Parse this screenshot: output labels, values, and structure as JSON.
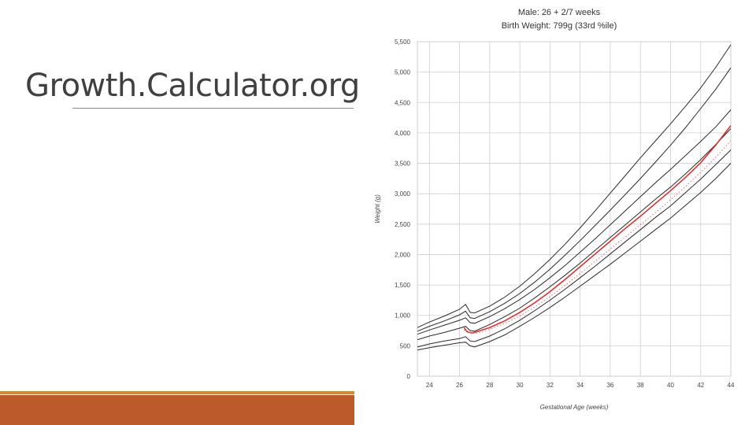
{
  "slide": {
    "title": "Growth.Calculator.org"
  },
  "chart_data": {
    "type": "line",
    "title_line1": "Male: 26 + 2/7 weeks",
    "title_line2": "Birth Weight: 799g (33rd %ile)",
    "xlabel": "Gestational Age (weeks)",
    "ylabel": "Weight (g)",
    "xlim": [
      23.2,
      44
    ],
    "ylim": [
      0,
      5500
    ],
    "xticks": [
      24,
      26,
      28,
      30,
      32,
      34,
      36,
      38,
      40,
      42,
      44
    ],
    "xtick_labels": [
      "24",
      "26",
      "28",
      "30",
      "32",
      "34",
      "36",
      "38",
      "40",
      "42",
      "44"
    ],
    "yticks": [
      0,
      500,
      1000,
      1500,
      2000,
      2500,
      3000,
      3500,
      4000,
      4500,
      5000,
      5500
    ],
    "ytick_labels": [
      "0",
      "500",
      "1,000",
      "1,500",
      "2,000",
      "2,500",
      "3,000",
      "3,500",
      "4,000",
      "4,500",
      "5,000",
      "5,500"
    ],
    "grid": true,
    "colors": {
      "percentile": "#2a2a2a",
      "patient": "#e03030",
      "patient_dotted": "#e06060",
      "grid": "#cfcfcf"
    },
    "series": [
      {
        "style": "black",
        "x": [
          23.2,
          24,
          25,
          26,
          26.4,
          26.7,
          27,
          28,
          29,
          30,
          31,
          32,
          33,
          34,
          35,
          36,
          37,
          38,
          39,
          40,
          41,
          42,
          43,
          44
        ],
        "y": [
          430,
          470,
          510,
          550,
          560,
          500,
          480,
          570,
          680,
          820,
          970,
          1130,
          1300,
          1480,
          1660,
          1840,
          2030,
          2220,
          2410,
          2600,
          2810,
          3020,
          3250,
          3500
        ]
      },
      {
        "style": "black",
        "x": [
          23.2,
          24,
          25,
          26,
          26.4,
          26.7,
          27,
          28,
          29,
          30,
          31,
          32,
          33,
          34,
          35,
          36,
          37,
          38,
          39,
          40,
          41,
          42,
          43,
          44
        ],
        "y": [
          480,
          530,
          580,
          620,
          650,
          580,
          570,
          660,
          780,
          920,
          1080,
          1250,
          1430,
          1620,
          1810,
          2010,
          2210,
          2410,
          2610,
          2800,
          3020,
          3240,
          3480,
          3720
        ]
      },
      {
        "style": "black",
        "x": [
          23.2,
          24,
          25,
          26,
          26.4,
          26.7,
          27,
          28,
          29,
          30,
          31,
          32,
          33,
          34,
          35,
          36,
          37,
          38,
          39,
          40,
          41,
          42,
          43,
          44
        ],
        "y": [
          600,
          660,
          720,
          790,
          820,
          750,
          740,
          850,
          980,
          1120,
          1290,
          1470,
          1660,
          1860,
          2070,
          2280,
          2490,
          2700,
          2910,
          3110,
          3330,
          3560,
          3810,
          4070
        ]
      },
      {
        "style": "black",
        "x": [
          23.2,
          24,
          25,
          26,
          26.4,
          26.7,
          27,
          28,
          29,
          30,
          31,
          32,
          33,
          34,
          35,
          36,
          37,
          38,
          39,
          40,
          41,
          42,
          43,
          44
        ],
        "y": [
          690,
          760,
          840,
          920,
          960,
          880,
          870,
          980,
          1110,
          1260,
          1430,
          1620,
          1820,
          2040,
          2260,
          2490,
          2720,
          2950,
          3180,
          3400,
          3630,
          3860,
          4100,
          4380
        ]
      },
      {
        "style": "black",
        "x": [
          23.2,
          24,
          25,
          26,
          26.4,
          26.7,
          27,
          28,
          29,
          30,
          31,
          32,
          33,
          34,
          35,
          36,
          37,
          38,
          39,
          40,
          41,
          42,
          43,
          44
        ],
        "y": [
          800,
          890,
          990,
          1100,
          1180,
          1050,
          1040,
          1150,
          1300,
          1480,
          1690,
          1920,
          2170,
          2440,
          2720,
          3010,
          3300,
          3590,
          3870,
          4150,
          4440,
          4740,
          5080,
          5450
        ]
      },
      {
        "style": "black",
        "x": [
          23.2,
          24,
          25,
          26,
          26.4,
          26.7,
          27,
          28,
          29,
          30,
          31,
          32,
          33,
          34,
          35,
          36,
          37,
          38,
          39,
          40,
          41,
          42,
          43,
          44
        ],
        "y": [
          740,
          820,
          910,
          1010,
          1070,
          960,
          950,
          1060,
          1200,
          1360,
          1550,
          1760,
          1990,
          2230,
          2480,
          2730,
          2990,
          3250,
          3520,
          3800,
          4090,
          4400,
          4720,
          5070
        ]
      },
      {
        "style": "patient",
        "x": [
          26.3,
          26.5,
          26.8,
          27,
          27.5,
          28,
          29,
          30,
          31,
          32,
          33,
          34,
          35,
          36,
          37,
          38,
          39,
          40,
          41,
          42,
          43,
          44
        ],
        "y": [
          799,
          730,
          710,
          720,
          760,
          800,
          910,
          1050,
          1210,
          1390,
          1590,
          1800,
          2010,
          2220,
          2430,
          2630,
          2840,
          3050,
          3270,
          3510,
          3800,
          4120
        ]
      },
      {
        "style": "dotted",
        "x": [
          26.3,
          27,
          28,
          29,
          30,
          31,
          32,
          33,
          34,
          35,
          36,
          37,
          38,
          39,
          40,
          41,
          42,
          43,
          44
        ],
        "y": [
          760,
          700,
          770,
          870,
          990,
          1140,
          1310,
          1490,
          1690,
          1890,
          2090,
          2290,
          2490,
          2690,
          2900,
          3120,
          3350,
          3600,
          3870
        ]
      }
    ]
  }
}
